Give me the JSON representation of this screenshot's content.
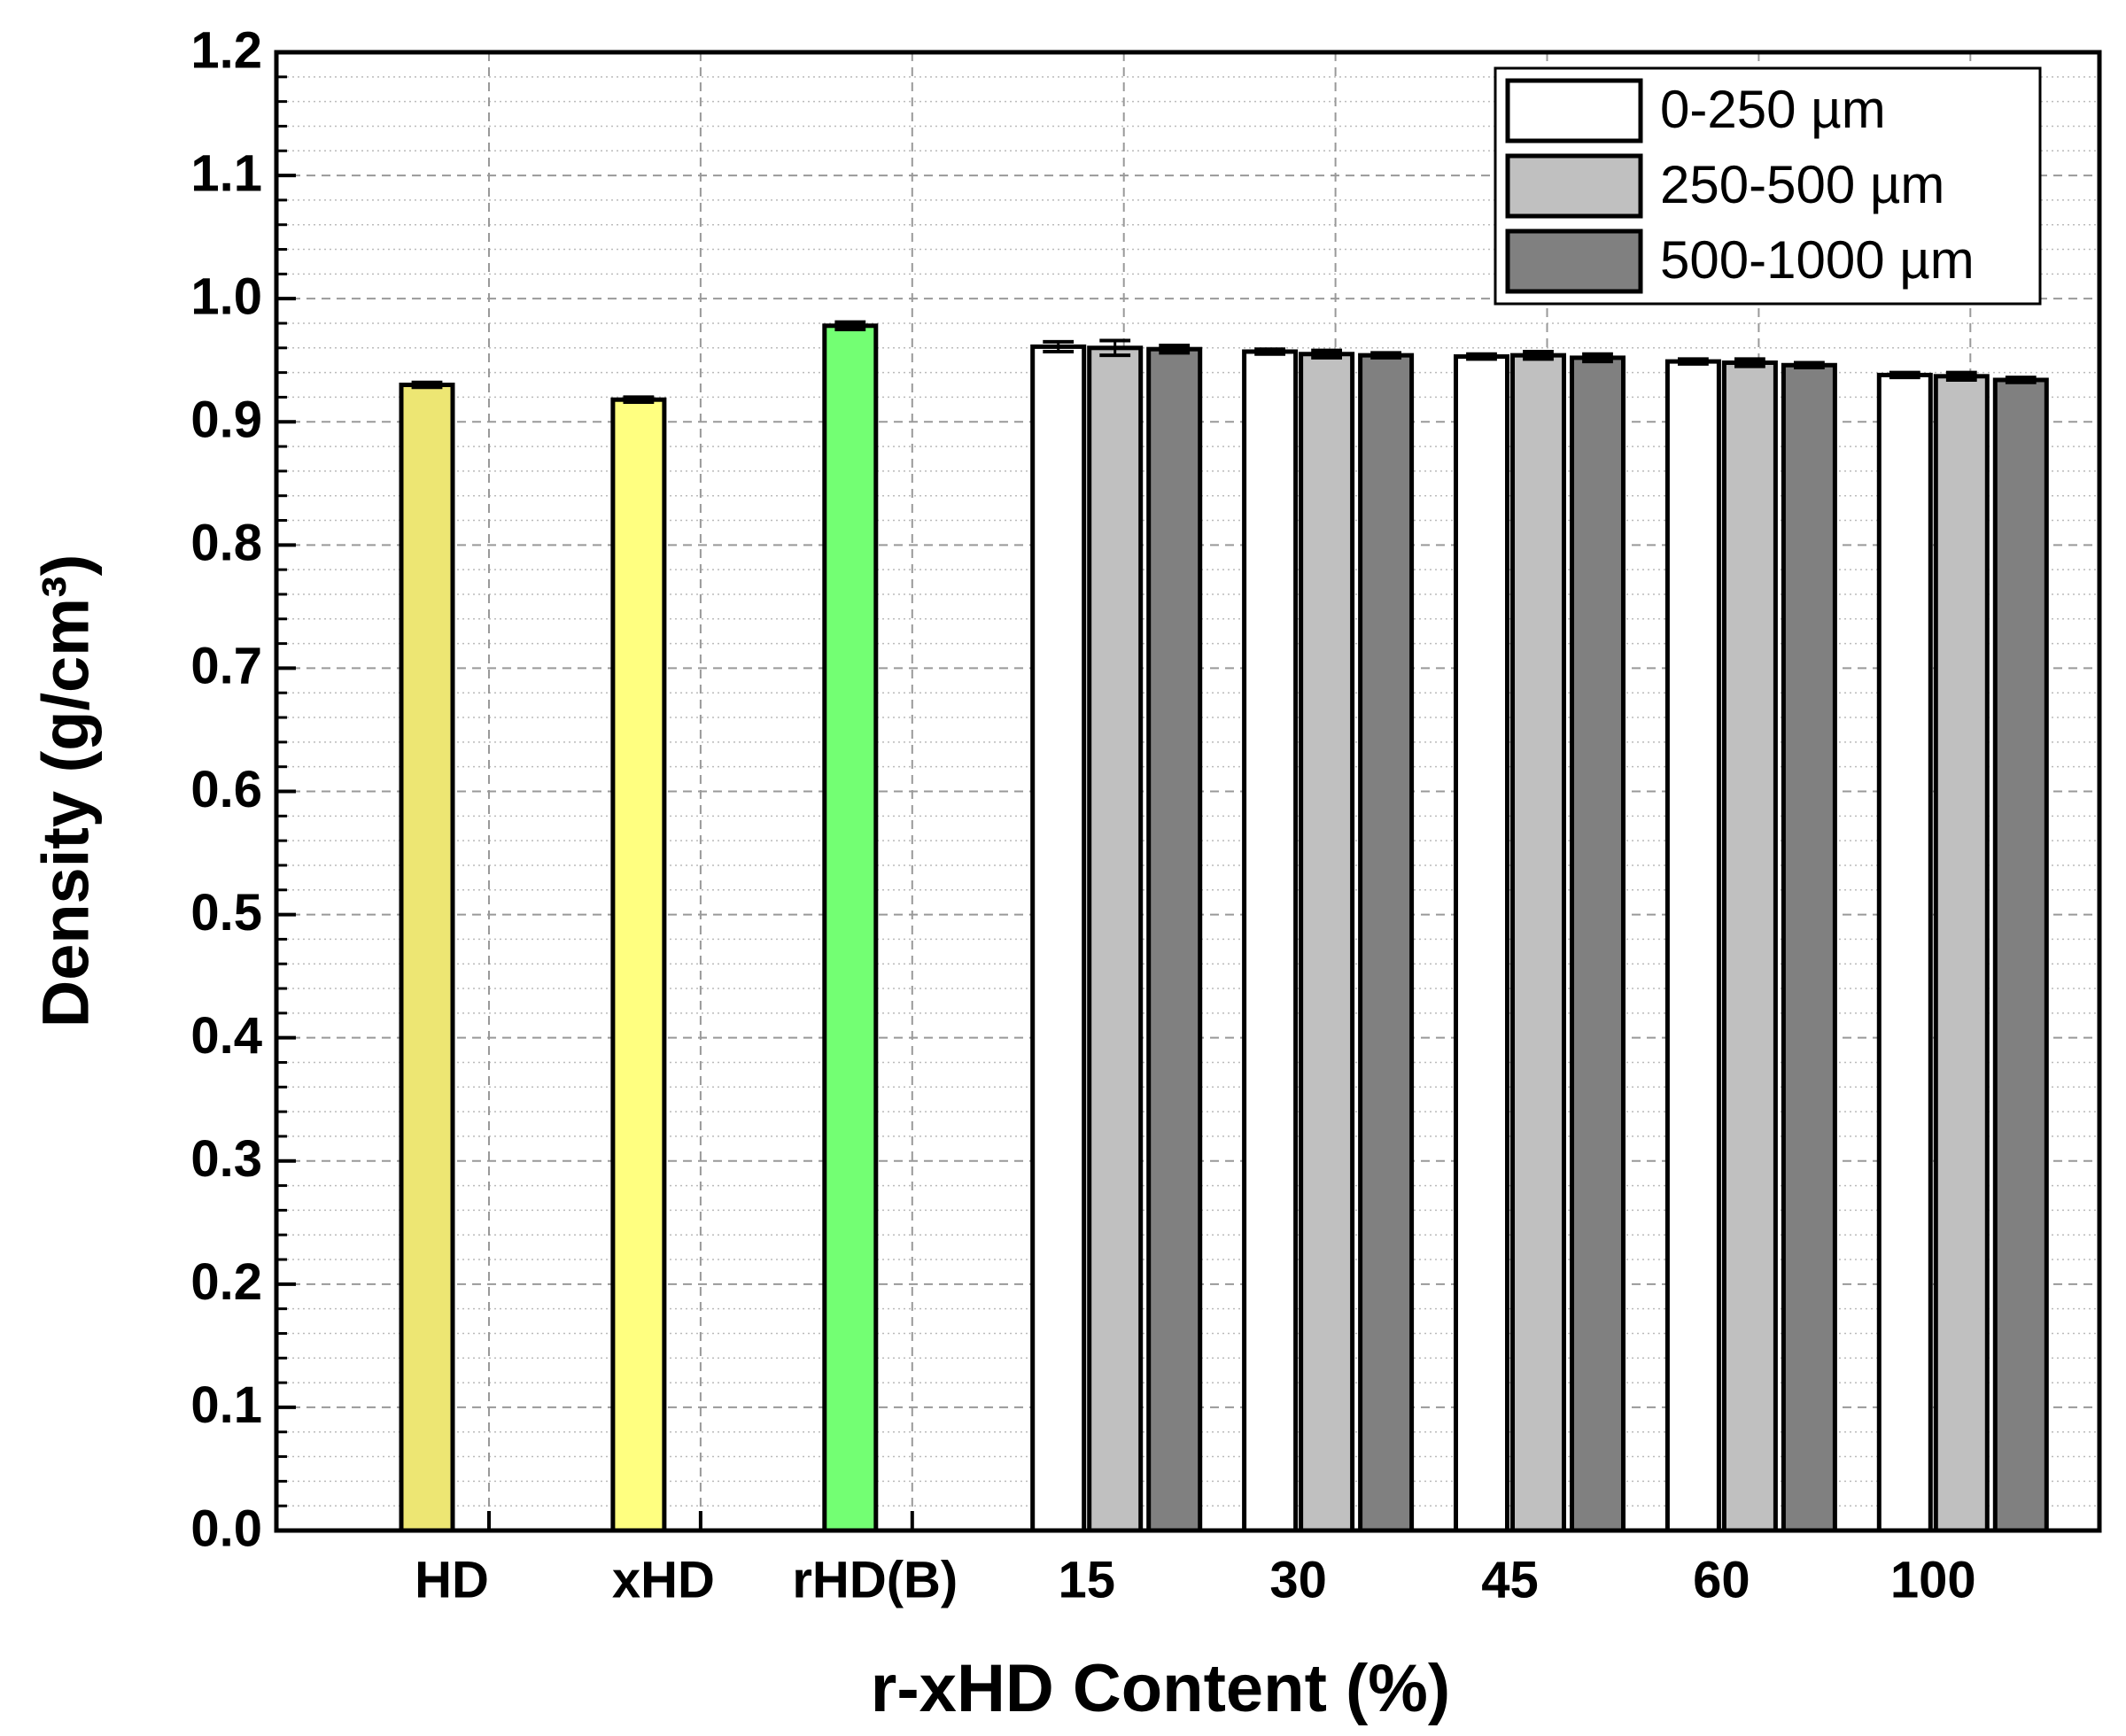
{
  "chart_data": {
    "type": "bar",
    "x_label": "r-xHD Content (%)",
    "y_label": "Density (g/cm³)",
    "categories": [
      "HD",
      "xHD",
      "rHD(B)",
      "15",
      "30",
      "45",
      "60",
      "100"
    ],
    "ylim": [
      0,
      1.2
    ],
    "yticks": [
      {
        "value": 0,
        "label": "0.0"
      },
      0.1,
      0.2,
      0.3,
      0.4,
      0.5,
      0.6,
      0.7,
      0.8,
      0.9,
      {
        "value": 1,
        "label": "1.0"
      },
      1.1,
      1.2
    ],
    "grid": true,
    "legend": "upper right",
    "reference": {
      "colors": [
        "#ede673",
        "#ffff80",
        "#73ff73"
      ],
      "values": [
        0.93,
        0.918,
        0.978
      ],
      "errors": [
        0.002,
        0.002,
        0.003
      ]
    },
    "series": [
      {
        "name": "0-250 µm",
        "color": "#ffffff",
        "values": [
          null,
          null,
          null,
          0.961,
          0.957,
          0.953,
          0.949,
          0.938
        ],
        "errors": [
          null,
          null,
          null,
          0.004,
          0.002,
          0.002,
          0.002,
          0.002
        ]
      },
      {
        "name": "250-500 µm",
        "color": "#c0c0c0",
        "values": [
          null,
          null,
          null,
          0.96,
          0.955,
          0.954,
          0.948,
          0.937
        ],
        "errors": [
          null,
          null,
          null,
          0.006,
          0.003,
          0.003,
          0.003,
          0.003
        ]
      },
      {
        "name": "500-1000 µm",
        "color": "#808080",
        "values": [
          null,
          null,
          null,
          0.959,
          0.954,
          0.952,
          0.946,
          0.934
        ],
        "errors": [
          null,
          null,
          null,
          0.003,
          0.002,
          0.003,
          0.002,
          0.002
        ]
      }
    ]
  }
}
